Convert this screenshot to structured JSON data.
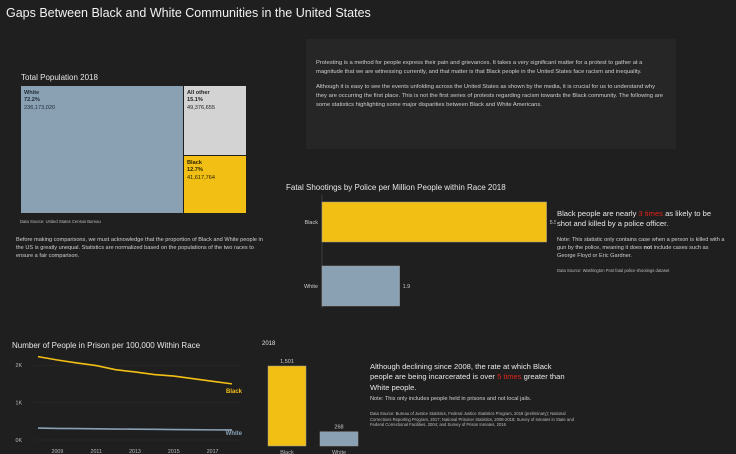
{
  "title": "Gaps Between Black and White Communities in the United States",
  "population": {
    "heading": "Total Population 2018",
    "cells": [
      {
        "label": "White",
        "pct": "72.2%",
        "count": "236,173,020",
        "color": "#8aa1b4"
      },
      {
        "label": "All other",
        "pct": "15.1%",
        "count": "49,376,655",
        "color": "#d3d3d3"
      },
      {
        "label": "Black",
        "pct": "12.7%",
        "count": "41,617,764",
        "color": "#f2c014"
      }
    ],
    "source": "Data Source: United States Census Bureau",
    "note": "Before making comparisons, we must acknowledge that the proportion of Black and White people in the US is greatly unequal. Statistics are normalized based on the populations of the two races to ensure a fair comparison."
  },
  "intro": {
    "p1": "Protesting is a method for people express their pain and grievances. It takes a very significant matter for a protest to gather at a magnitude that we are witnessing currently, and that matter is that Black people in the United States face racism and inequality.",
    "p2": "Although it is easy to see the events unfolding across the United States as shown by the media, it is crucial for us to understand why they are occurring the first place. This is not the first series of protests regarding racism towards the Black community. The following are some statistics highlighting some major disparities between Black and White Americans."
  },
  "shootings": {
    "callout_pre": "Black people are nearly ",
    "callout_hl": "3 times",
    "callout_post": " as likely to be shot and killed by a police officer.",
    "note_pre": "Note: This statistic only contains case when a person is killed with a gun by the police, meaning it does ",
    "note_bold": "not",
    "note_post": " include cases such as George Floyd or Eric Gardner.",
    "source": "Data Source: Washington Post fatal police shootings dataset"
  },
  "prison": {
    "bar_heading": "2018",
    "callout_pre": "Although declining since 2008, the rate at which Black people are being incarcerated is over ",
    "callout_hl": "5 times",
    "callout_post": " greater than White people.",
    "note": "Note: This only includes people held in prisons and not local jails.",
    "source": "Data Source: Bureau of Justice Statistics, Federal Justice Statistics Program, 2018 (preliminary); National Corrections Reporting Program, 2017; National Prisoner Statistics, 2008-2018; Survey of Inmates in State and Federal Correctional Facilities, 2004; and Survey of Prison Inmates, 2016"
  },
  "colors": {
    "black": "#f2c014",
    "white": "#8aa1b4",
    "highlight": "#e0231a"
  },
  "chart_data": [
    {
      "type": "bar",
      "orientation": "horizontal",
      "title": "Fatal Shootings by Police per Million People within Race 2018",
      "categories": [
        "Black",
        "White"
      ],
      "values": [
        5.5,
        1.9
      ],
      "value_labels": [
        "5.5",
        "1.9"
      ],
      "xlim": [
        0,
        6
      ]
    },
    {
      "type": "line",
      "title": "Number of People in Prison per 100,000 Within Race",
      "x": [
        2008,
        2009,
        2010,
        2011,
        2012,
        2013,
        2014,
        2015,
        2016,
        2017,
        2018
      ],
      "x_ticks": [
        "2009",
        "2011",
        "2013",
        "2015",
        "2017"
      ],
      "y_ticks": [
        "0K",
        "1K",
        "2K"
      ],
      "ylim": [
        0,
        2300
      ],
      "series": [
        {
          "name": "Black",
          "values": [
            2230,
            2140,
            2060,
            1990,
            1880,
            1820,
            1750,
            1710,
            1640,
            1570,
            1501
          ]
        },
        {
          "name": "White",
          "values": [
            320,
            310,
            305,
            300,
            293,
            290,
            285,
            280,
            275,
            271,
            268
          ]
        }
      ]
    },
    {
      "type": "bar",
      "title": "2018",
      "categories": [
        "Black",
        "White"
      ],
      "values": [
        1501,
        268
      ],
      "value_labels": [
        "1,501",
        "268"
      ],
      "ylim": [
        0,
        1501
      ]
    }
  ]
}
